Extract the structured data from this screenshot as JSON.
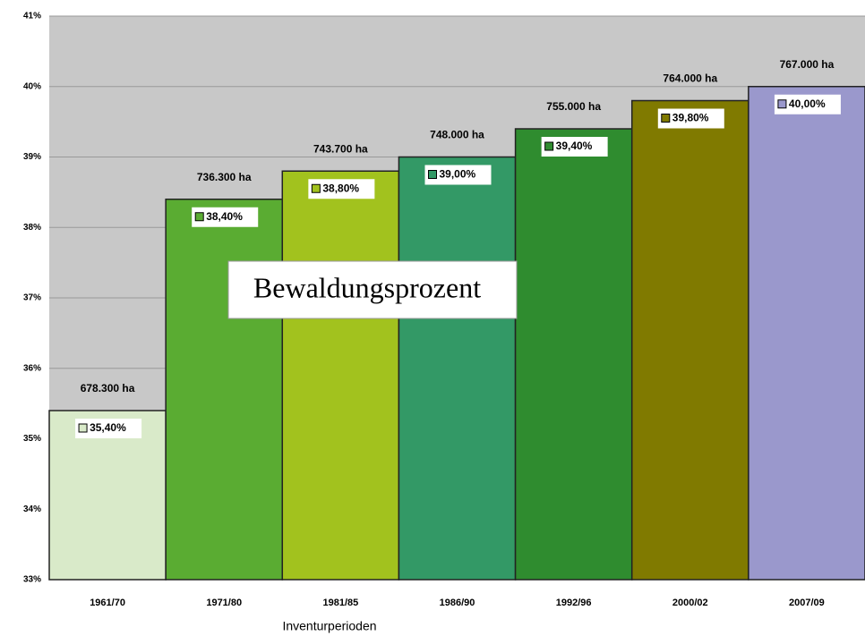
{
  "chart_data": {
    "type": "bar",
    "title": "Bewaldungsprozent",
    "x_label": "Inventurperioden",
    "categories": [
      "1961/70",
      "1971/80",
      "1981/85",
      "1986/90",
      "1992/96",
      "2000/02",
      "2007/09"
    ],
    "values": [
      35.4,
      38.4,
      38.8,
      39.0,
      39.4,
      39.8,
      40.0
    ],
    "value_labels": [
      "35,40%",
      "38,40%",
      "38,80%",
      "39,00%",
      "39,40%",
      "39,80%",
      "40,00%"
    ],
    "bar_annotations": [
      "678.300 ha",
      "736.300 ha",
      "743.700 ha",
      "748.000 ha",
      "755.000 ha",
      "764.000 ha",
      "767.000 ha"
    ],
    "colors": [
      "#d9eac9",
      "#5aac32",
      "#a2c21e",
      "#339966",
      "#2f8c2f",
      "#807a00",
      "#9a98cc"
    ],
    "ylim": [
      33,
      41
    ],
    "yticks": [
      {
        "value": 33,
        "label": "33%"
      },
      {
        "value": 34,
        "label": "34%"
      },
      {
        "value": 35,
        "label": "35%"
      },
      {
        "value": 36,
        "label": "36%"
      },
      {
        "value": 37,
        "label": "37%"
      },
      {
        "value": 38,
        "label": "38%"
      },
      {
        "value": 39,
        "label": "39%"
      },
      {
        "value": 40,
        "label": "40%"
      },
      {
        "value": 41,
        "label": "41%"
      }
    ],
    "grid": true
  }
}
